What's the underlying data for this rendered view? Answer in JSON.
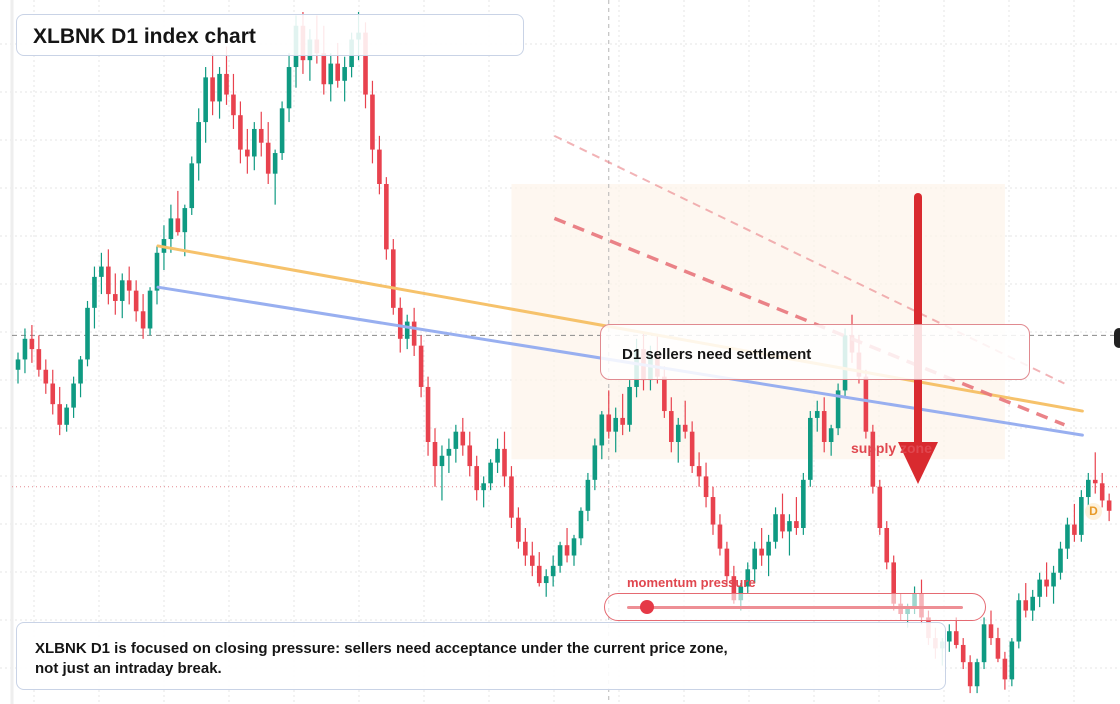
{
  "title": "XLBNK D1 index chart",
  "note": "XLBNK D1 is focused on closing pressure: sellers need acceptance under the current price zone, not just an intraday break.",
  "callout": "D1 sellers need settlement",
  "supply_label": "supply zone",
  "momentum_label": "momentum pressure",
  "momentum_level": 0.06,
  "badge": "D",
  "colors": {
    "up": "#0f9a82",
    "down": "#e8424e",
    "trend_orange": "#f6c26b",
    "trend_blue": "#98aff0",
    "arrow": "#d92a2f",
    "channel": "#e8767c",
    "supply_zone": "#fdf3e9"
  },
  "chart_data": {
    "type": "candlestick",
    "title": "XLBNK D1 index chart",
    "ylim": [
      0,
      100
    ],
    "candles": [
      [
        48.0,
        50.5,
        46.0,
        49.5
      ],
      [
        49.5,
        54.0,
        47.5,
        52.5
      ],
      [
        52.5,
        54.5,
        49.0,
        51.0
      ],
      [
        51.0,
        53.0,
        47.0,
        48.0
      ],
      [
        48.0,
        49.5,
        44.5,
        46.0
      ],
      [
        46.0,
        48.0,
        41.5,
        43.0
      ],
      [
        43.0,
        45.5,
        38.5,
        40.0
      ],
      [
        40.0,
        43.0,
        39.0,
        42.5
      ],
      [
        42.5,
        47.0,
        41.0,
        46.0
      ],
      [
        46.0,
        50.0,
        44.0,
        49.5
      ],
      [
        49.5,
        58.0,
        48.5,
        57.0
      ],
      [
        57.0,
        63.0,
        54.0,
        61.5
      ],
      [
        61.5,
        65.0,
        59.0,
        63.0
      ],
      [
        63.0,
        65.5,
        57.5,
        59.0
      ],
      [
        59.0,
        62.0,
        56.0,
        58.0
      ],
      [
        58.0,
        62.0,
        55.5,
        61.0
      ],
      [
        61.0,
        63.0,
        57.5,
        59.5
      ],
      [
        59.5,
        61.0,
        55.0,
        56.5
      ],
      [
        56.5,
        59.0,
        52.5,
        54.0
      ],
      [
        54.0,
        60.0,
        53.0,
        59.5
      ],
      [
        59.5,
        66.0,
        57.5,
        65.0
      ],
      [
        65.0,
        69.0,
        62.5,
        67.0
      ],
      [
        67.0,
        72.0,
        65.0,
        70.0
      ],
      [
        70.0,
        74.0,
        67.5,
        68.0
      ],
      [
        68.0,
        72.0,
        64.5,
        71.5
      ],
      [
        71.5,
        79.0,
        70.5,
        78.0
      ],
      [
        78.0,
        86.0,
        75.5,
        84.0
      ],
      [
        84.0,
        92.0,
        81.0,
        90.5
      ],
      [
        90.5,
        94.0,
        85.0,
        87.0
      ],
      [
        87.0,
        92.0,
        84.5,
        91.0
      ],
      [
        91.0,
        95.0,
        86.5,
        88.0
      ],
      [
        88.0,
        91.0,
        83.0,
        85.0
      ],
      [
        85.0,
        87.0,
        78.0,
        80.0
      ],
      [
        80.0,
        83.0,
        76.5,
        79.0
      ],
      [
        79.0,
        84.0,
        77.0,
        83.0
      ],
      [
        83.0,
        85.5,
        79.0,
        81.0
      ],
      [
        81.0,
        84.0,
        75.0,
        76.5
      ],
      [
        76.5,
        80.0,
        72.0,
        79.5
      ],
      [
        79.5,
        87.0,
        78.5,
        86.0
      ],
      [
        86.0,
        94.0,
        84.0,
        92.0
      ],
      [
        92.0,
        99.5,
        89.0,
        98.0
      ],
      [
        98.0,
        100.0,
        91.0,
        93.0
      ],
      [
        93.0,
        97.5,
        90.0,
        96.0
      ],
      [
        96.0,
        99.5,
        92.5,
        94.0
      ],
      [
        94.0,
        98.0,
        88.0,
        89.5
      ],
      [
        89.5,
        94.0,
        87.0,
        92.5
      ],
      [
        92.5,
        95.5,
        89.0,
        90.0
      ],
      [
        90.0,
        93.5,
        87.0,
        92.0
      ],
      [
        92.0,
        97.0,
        90.5,
        96.0
      ],
      [
        96.0,
        100.0,
        93.0,
        97.0
      ],
      [
        97.0,
        98.5,
        86.0,
        88.0
      ],
      [
        88.0,
        90.0,
        78.0,
        80.0
      ],
      [
        80.0,
        82.0,
        73.5,
        75.0
      ],
      [
        75.0,
        76.0,
        64.0,
        65.5
      ],
      [
        65.5,
        67.0,
        56.0,
        57.0
      ],
      [
        57.0,
        58.5,
        50.5,
        52.5
      ],
      [
        52.5,
        56.0,
        51.0,
        55.0
      ],
      [
        55.0,
        57.0,
        50.0,
        51.5
      ],
      [
        51.5,
        53.0,
        44.0,
        45.5
      ],
      [
        45.5,
        47.0,
        35.5,
        37.5
      ],
      [
        37.5,
        39.5,
        31.0,
        34.0
      ],
      [
        34.0,
        37.0,
        29.0,
        35.5
      ],
      [
        35.5,
        38.0,
        33.0,
        36.5
      ],
      [
        36.5,
        40.0,
        34.5,
        39.0
      ],
      [
        39.0,
        41.0,
        35.5,
        37.0
      ],
      [
        37.0,
        39.0,
        32.5,
        34.0
      ],
      [
        34.0,
        35.5,
        29.0,
        30.5
      ],
      [
        30.5,
        32.5,
        28.0,
        31.5
      ],
      [
        31.5,
        35.0,
        30.5,
        34.5
      ],
      [
        34.5,
        38.0,
        33.0,
        36.5
      ],
      [
        36.5,
        39.0,
        31.0,
        32.5
      ],
      [
        32.5,
        34.0,
        25.0,
        26.5
      ],
      [
        26.5,
        28.0,
        22.0,
        23.0
      ],
      [
        23.0,
        25.0,
        19.5,
        21.0
      ],
      [
        21.0,
        23.0,
        18.0,
        19.5
      ],
      [
        19.5,
        21.5,
        16.5,
        17.0
      ],
      [
        17.0,
        19.0,
        15.0,
        18.0
      ],
      [
        18.0,
        21.0,
        16.5,
        19.5
      ],
      [
        19.5,
        23.0,
        18.5,
        22.5
      ],
      [
        22.5,
        25.0,
        20.0,
        21.0
      ],
      [
        21.0,
        24.0,
        19.5,
        23.5
      ],
      [
        23.5,
        28.0,
        22.5,
        27.5
      ],
      [
        27.5,
        33.0,
        26.0,
        32.0
      ],
      [
        32.0,
        38.0,
        30.5,
        37.0
      ],
      [
        37.0,
        42.0,
        35.0,
        41.5
      ],
      [
        41.5,
        45.0,
        38.0,
        39.0
      ],
      [
        39.0,
        42.5,
        36.0,
        41.0
      ],
      [
        41.0,
        44.5,
        38.5,
        40.0
      ],
      [
        40.0,
        46.5,
        39.0,
        45.5
      ],
      [
        45.5,
        52.5,
        44.0,
        51.0
      ],
      [
        51.0,
        53.5,
        45.0,
        46.5
      ],
      [
        46.5,
        51.5,
        45.0,
        50.0
      ],
      [
        50.0,
        53.0,
        46.0,
        47.0
      ],
      [
        47.0,
        48.5,
        41.0,
        42.0
      ],
      [
        42.0,
        44.0,
        36.0,
        37.5
      ],
      [
        37.5,
        41.0,
        34.5,
        40.0
      ],
      [
        40.0,
        43.5,
        38.0,
        39.0
      ],
      [
        39.0,
        40.5,
        33.0,
        34.0
      ],
      [
        34.0,
        36.0,
        31.0,
        32.5
      ],
      [
        32.5,
        34.5,
        28.0,
        29.5
      ],
      [
        29.5,
        31.0,
        24.0,
        25.5
      ],
      [
        25.5,
        27.0,
        21.0,
        22.0
      ],
      [
        22.0,
        23.0,
        16.5,
        18.0
      ],
      [
        18.0,
        19.5,
        14.0,
        14.5
      ],
      [
        14.5,
        17.0,
        13.0,
        16.5
      ],
      [
        16.5,
        20.0,
        15.5,
        19.0
      ],
      [
        19.0,
        23.0,
        17.0,
        22.0
      ],
      [
        22.0,
        25.0,
        19.5,
        21.0
      ],
      [
        21.0,
        24.0,
        18.0,
        23.0
      ],
      [
        23.0,
        28.0,
        22.0,
        27.0
      ],
      [
        27.0,
        30.0,
        23.5,
        24.5
      ],
      [
        24.5,
        27.0,
        21.0,
        26.0
      ],
      [
        26.0,
        29.5,
        24.0,
        25.0
      ],
      [
        25.0,
        33.0,
        24.0,
        32.0
      ],
      [
        32.0,
        42.0,
        31.0,
        41.0
      ],
      [
        41.0,
        43.5,
        39.0,
        42.0
      ],
      [
        42.0,
        44.0,
        36.0,
        37.5
      ],
      [
        37.5,
        40.0,
        35.5,
        39.5
      ],
      [
        39.5,
        46.0,
        38.5,
        45.0
      ],
      [
        45.0,
        54.0,
        44.0,
        53.0
      ],
      [
        53.0,
        56.0,
        49.0,
        50.5
      ],
      [
        50.5,
        53.0,
        46.0,
        47.0
      ],
      [
        47.0,
        48.0,
        38.0,
        39.0
      ],
      [
        39.0,
        40.0,
        30.0,
        31.0
      ],
      [
        31.0,
        32.0,
        24.0,
        25.0
      ],
      [
        25.0,
        26.0,
        19.0,
        20.0
      ],
      [
        20.0,
        21.0,
        13.0,
        14.0
      ],
      [
        14.0,
        15.5,
        11.5,
        12.5
      ],
      [
        12.5,
        14.0,
        10.5,
        13.5
      ],
      [
        13.5,
        16.5,
        12.5,
        15.5
      ],
      [
        15.5,
        17.5,
        11.0,
        12.0
      ],
      [
        12.0,
        13.0,
        8.0,
        9.0
      ],
      [
        9.0,
        10.5,
        6.0,
        7.5
      ],
      [
        7.5,
        9.0,
        5.0,
        8.5
      ],
      [
        8.5,
        11.0,
        7.0,
        10.0
      ],
      [
        10.0,
        12.0,
        7.5,
        8.0
      ],
      [
        8.0,
        9.0,
        4.5,
        5.5
      ],
      [
        5.5,
        6.5,
        1.0,
        2.0
      ],
      [
        2.0,
        6.0,
        1.0,
        5.5
      ],
      [
        5.5,
        12.0,
        4.5,
        11.0
      ],
      [
        11.0,
        13.0,
        8.0,
        9.0
      ],
      [
        9.0,
        10.5,
        5.5,
        6.0
      ],
      [
        6.0,
        7.0,
        1.5,
        3.0
      ],
      [
        3.0,
        9.0,
        2.0,
        8.5
      ],
      [
        8.5,
        15.5,
        7.5,
        14.5
      ],
      [
        14.5,
        17.0,
        12.0,
        13.0
      ],
      [
        13.0,
        16.0,
        11.5,
        15.0
      ],
      [
        15.0,
        18.5,
        13.5,
        17.5
      ],
      [
        17.5,
        20.0,
        15.0,
        16.5
      ],
      [
        16.5,
        19.5,
        14.0,
        18.5
      ],
      [
        18.5,
        23.0,
        17.5,
        22.0
      ],
      [
        22.0,
        26.5,
        20.5,
        25.5
      ],
      [
        25.5,
        28.5,
        23.0,
        24.0
      ],
      [
        24.0,
        30.5,
        23.0,
        29.5
      ],
      [
        29.5,
        33.0,
        28.0,
        32.0
      ],
      [
        32.0,
        36.0,
        30.0,
        31.5
      ],
      [
        31.5,
        33.0,
        28.0,
        29.0
      ],
      [
        29.0,
        30.0,
        26.0,
        27.5
      ]
    ],
    "trendlines": [
      {
        "from": [
          0.0,
          66.0
        ],
        "to": [
          152.0,
          42.0
        ]
      },
      {
        "from": [
          0.0,
          60.0
        ],
        "to": [
          152.0,
          38.5
        ]
      }
    ],
    "channel_lines": [
      {
        "from": [
          72.0,
          82.0
        ],
        "to": [
          152.0,
          46.0
        ]
      },
      {
        "from": [
          72.0,
          70.0
        ],
        "to": [
          152.0,
          40.0
        ]
      }
    ],
    "supply_zone": {
      "x": [
        71.0,
        142.0
      ],
      "y": [
        35.0,
        75.0
      ]
    },
    "horizontal_levels": [
      53.0,
      31.0
    ],
    "vertical_marker_x": 85.0
  }
}
